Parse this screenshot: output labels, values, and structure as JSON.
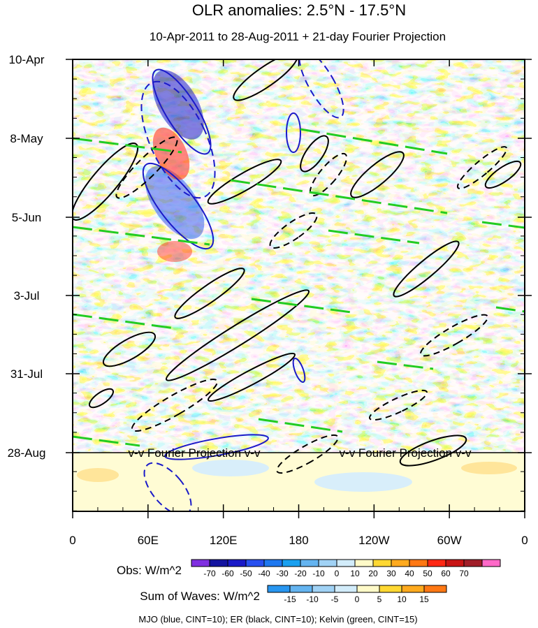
{
  "chart_data": {
    "type": "heatmap",
    "title": "OLR anomalies: 2.5°N - 17.5°N",
    "subtitle": "10-Apr-2011 to 28-Aug-2011 + 21-day Fourier Projection",
    "y_ticks": [
      "10-Apr",
      "8-May",
      "5-Jun",
      "3-Jul",
      "31-Jul",
      "28-Aug"
    ],
    "x_ticks": [
      "0",
      "60E",
      "120E",
      "180",
      "120W",
      "60W",
      "0"
    ],
    "projection_label": "v-v Fourier Projection v-v",
    "obs_colorbar": {
      "label": "Obs: W/m^2",
      "ticks": [
        "-70",
        "-60",
        "-50",
        "-40",
        "-30",
        "-20",
        "-10",
        "0",
        "10",
        "20",
        "30",
        "40",
        "50",
        "60",
        "70"
      ],
      "colors": [
        "#7f2fe0",
        "#1414a0",
        "#1a1ac8",
        "#2850f0",
        "#1e78f0",
        "#19a0f0",
        "#64b4f0",
        "#a0d2f5",
        "#d2ecfa",
        "#fffac8",
        "#ffd832",
        "#ffaa1e",
        "#ff7814",
        "#ff2814",
        "#c81414",
        "#a01e28",
        "#ff69c8"
      ]
    },
    "waves_colorbar": {
      "label": "Sum of Waves: W/m^2",
      "ticks": [
        "-15",
        "-10",
        "-5",
        "0",
        "5",
        "10",
        "15"
      ],
      "colors": [
        "#2896f0",
        "#64b4f0",
        "#a0d2f5",
        "#d2ecfa",
        "#fffac8",
        "#ffd832",
        "#ffaa1e",
        "#ff7814"
      ]
    },
    "footer": "MJO (blue, CINT=10); ER (black, CINT=10); Kelvin (green, CINT=15)",
    "series": [
      {
        "name": "MJO",
        "color": "#1a1ac8",
        "contour_interval": 10
      },
      {
        "name": "ER",
        "color": "#000000",
        "contour_interval": 10
      },
      {
        "name": "Kelvin",
        "color": "#22cc22",
        "contour_interval": 15
      }
    ]
  }
}
